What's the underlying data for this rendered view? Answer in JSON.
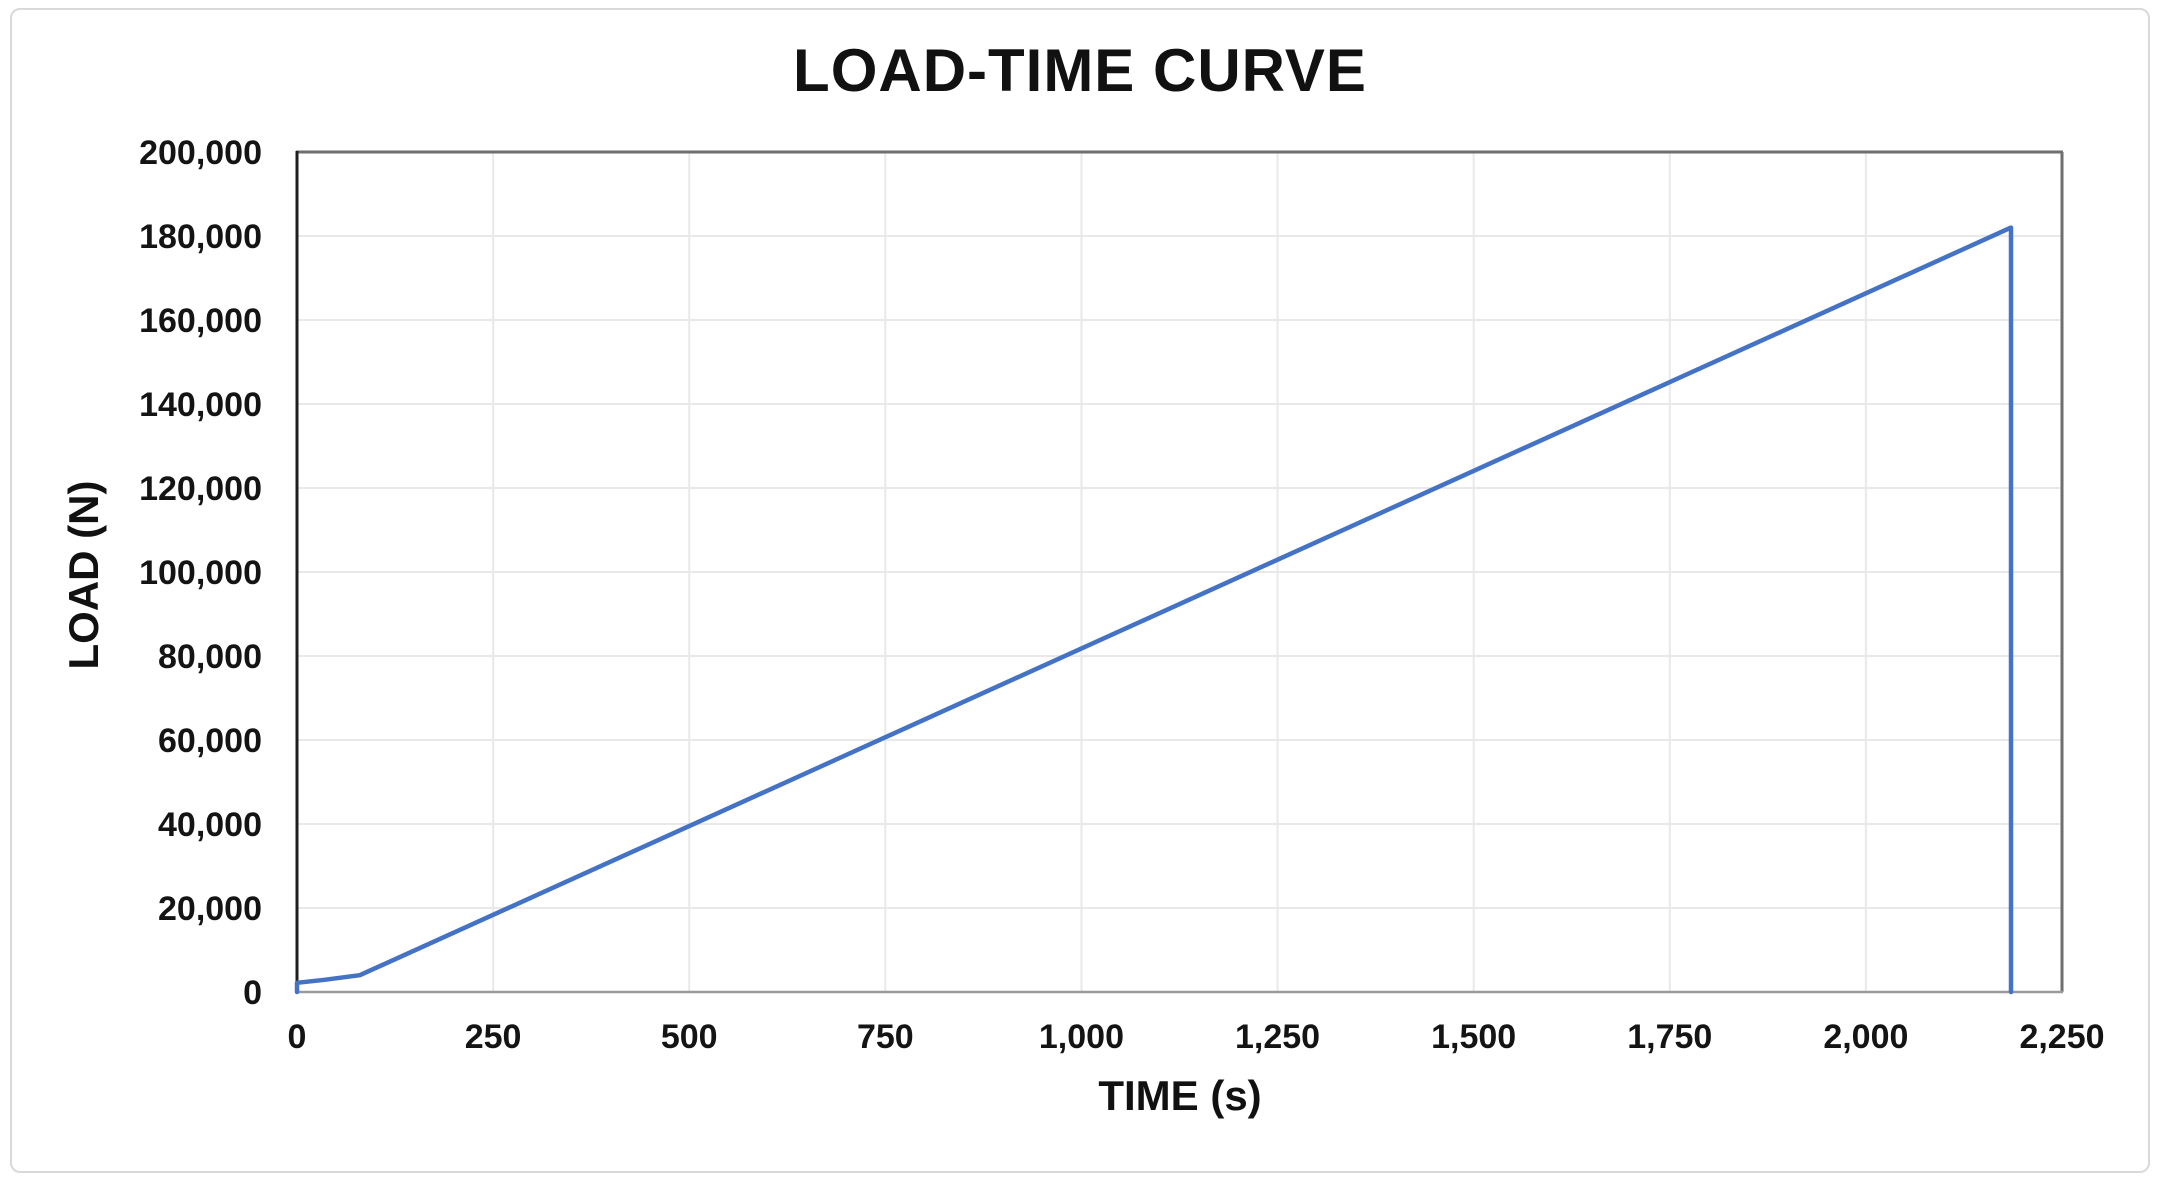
{
  "chart_data": {
    "type": "line",
    "title": "LOAD-TIME CURVE",
    "xlabel": "TIME (s)",
    "ylabel": "LOAD (N)",
    "xlim": [
      0,
      2250
    ],
    "ylim": [
      0,
      200000
    ],
    "x_ticks": [
      0,
      250,
      500,
      750,
      1000,
      1250,
      1500,
      1750,
      2000,
      2250
    ],
    "x_tick_labels": [
      "0",
      "250",
      "500",
      "750",
      "1,000",
      "1,250",
      "1,500",
      "1,750",
      "2,000",
      "2,250"
    ],
    "y_ticks": [
      0,
      20000,
      40000,
      60000,
      80000,
      100000,
      120000,
      140000,
      160000,
      180000,
      200000
    ],
    "y_tick_labels": [
      "0",
      "20,000",
      "40,000",
      "60,000",
      "80,000",
      "100,000",
      "120,000",
      "140,000",
      "160,000",
      "180,000",
      "200,000"
    ],
    "grid": true,
    "legend_position": "none",
    "series": [
      {
        "name": "Load",
        "points": [
          [
            0,
            0
          ],
          [
            0,
            2200
          ],
          [
            35,
            2900
          ],
          [
            80,
            4000
          ],
          [
            2185,
            182000
          ],
          [
            2185,
            0
          ]
        ]
      }
    ],
    "annotations": {
      "peak_load_n": 182000,
      "failure_time_s": 2185
    },
    "colors": {
      "line": "#4472C4",
      "gridline": "#e9e9e9",
      "plot_border": "#6e6e6e",
      "x_axis_line": "#9a9a9a",
      "y_axis_line": "#1f1f1f",
      "text": "#111111",
      "outer_frame": "#d9d9d9",
      "background": "#ffffff"
    }
  }
}
